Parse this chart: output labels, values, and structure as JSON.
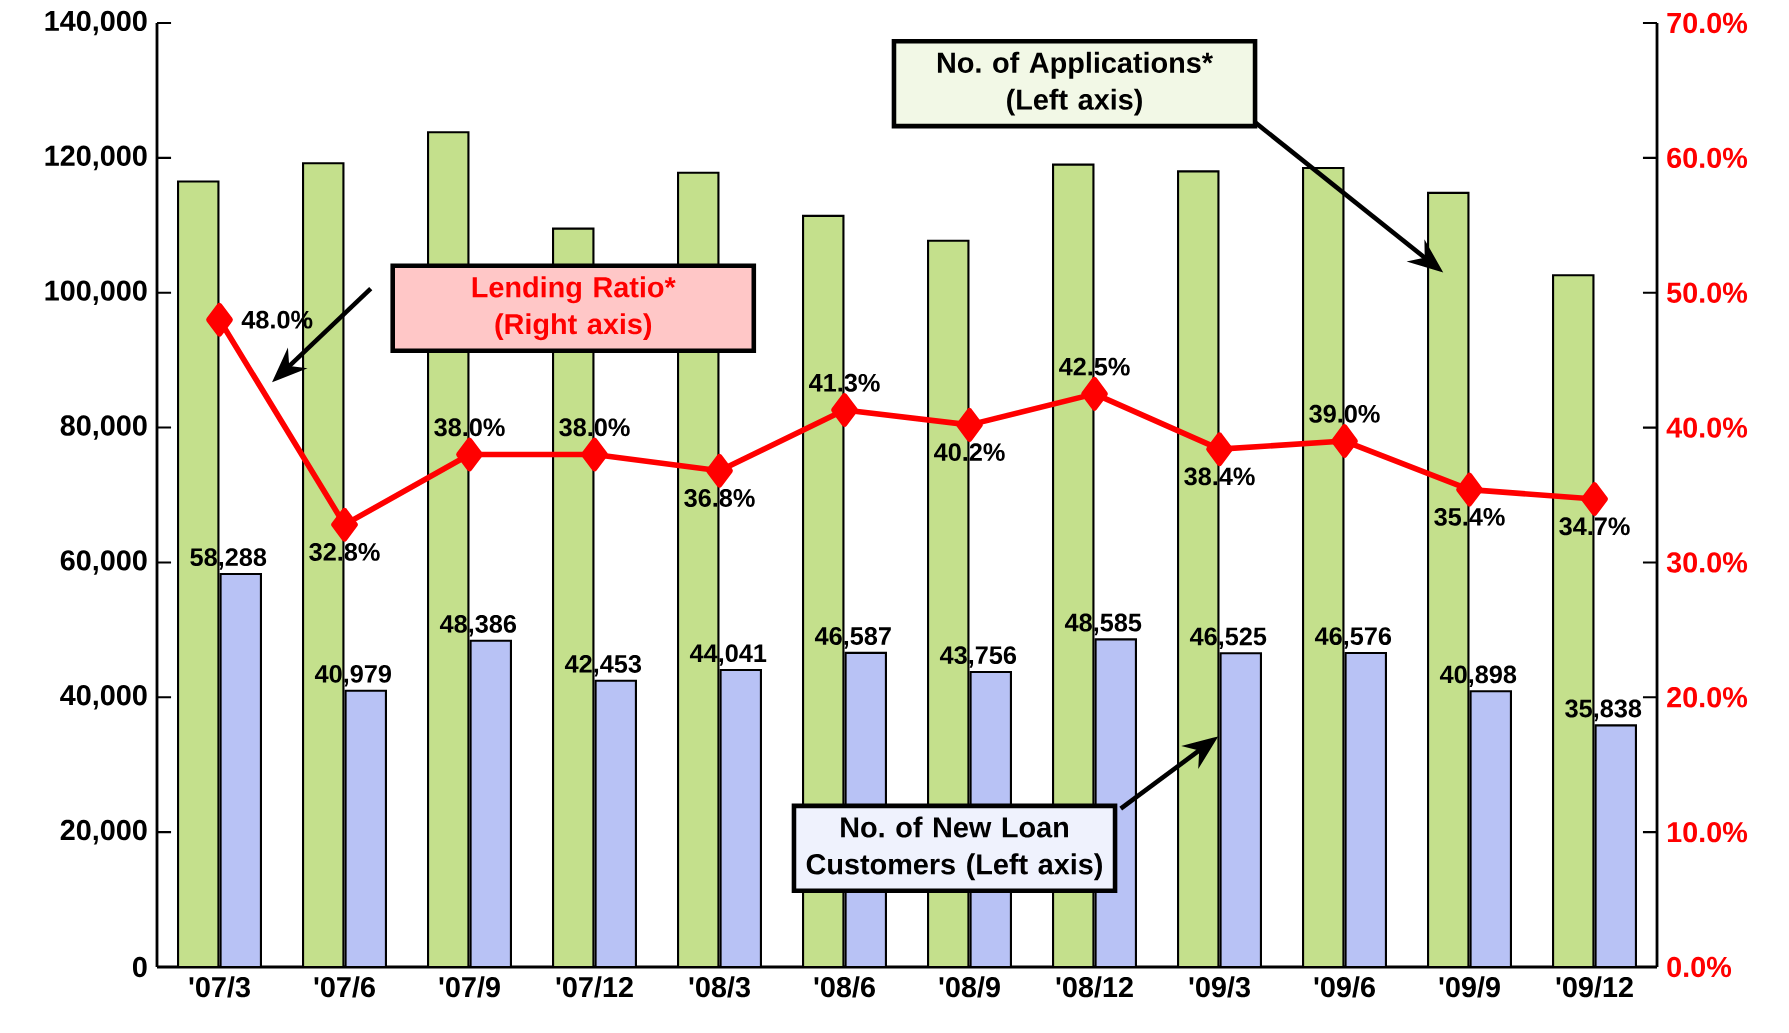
{
  "chart_data": {
    "type": "bar",
    "categories": [
      "'07/3",
      "'07/6",
      "'07/9",
      "'07/12",
      "'08/3",
      "'08/6",
      "'08/9",
      "'08/12",
      "'09/3",
      "'09/6",
      "'09/9",
      "'09/12"
    ],
    "series": [
      {
        "name": "No. of Applications* (Left axis)",
        "color": "#c4e08c",
        "values": [
          116500,
          119200,
          123800,
          109500,
          117800,
          111400,
          107700,
          119000,
          118000,
          118500,
          114800,
          102600
        ]
      },
      {
        "name": "No. of New Loan Customers (Left axis)",
        "color": "#b8c2f5",
        "values": [
          58288,
          40979,
          48386,
          42453,
          44041,
          46587,
          43756,
          48585,
          46525,
          46576,
          40898,
          35838
        ],
        "value_labels": [
          "58,288",
          "40,979",
          "48,386",
          "42,453",
          "44,041",
          "46,587",
          "43,756",
          "48,585",
          "46,525",
          "46,576",
          "40,898",
          "35,838"
        ]
      },
      {
        "name": "Lending Ratio* (Right axis)",
        "type": "line",
        "axis": "y2",
        "color": "#ff0000",
        "marker": "diamond",
        "values": [
          48.0,
          32.8,
          38.0,
          38.0,
          36.8,
          41.3,
          40.2,
          42.5,
          38.4,
          39.0,
          35.4,
          34.7
        ],
        "value_labels": [
          "48.0%",
          "32.8%",
          "38.0%",
          "38.0%",
          "36.8%",
          "41.3%",
          "40.2%",
          "42.5%",
          "38.4%",
          "39.0%",
          "35.4%",
          "34.7%"
        ]
      }
    ],
    "ylim": [
      0,
      140000
    ],
    "yticks": [
      {
        "value": 0,
        "label": "0"
      },
      {
        "value": 20000,
        "label": "20,000"
      },
      {
        "value": 40000,
        "label": "40,000"
      },
      {
        "value": 60000,
        "label": "60,000"
      },
      {
        "value": 80000,
        "label": "80,000"
      },
      {
        "value": 100000,
        "label": "100,000"
      },
      {
        "value": 120000,
        "label": "120,000"
      },
      {
        "value": 140000,
        "label": "140,000"
      }
    ],
    "y2lim": [
      0,
      70
    ],
    "y2ticks": [
      {
        "value": 0,
        "label": "0.0%"
      },
      {
        "value": 10,
        "label": "10.0%"
      },
      {
        "value": 20,
        "label": "20.0%"
      },
      {
        "value": 30,
        "label": "30.0%"
      },
      {
        "value": 40,
        "label": "40.0%"
      },
      {
        "value": 50,
        "label": "50.0%"
      },
      {
        "value": 60,
        "label": "60.0%"
      },
      {
        "value": 70,
        "label": "70.0%"
      }
    ]
  }
}
